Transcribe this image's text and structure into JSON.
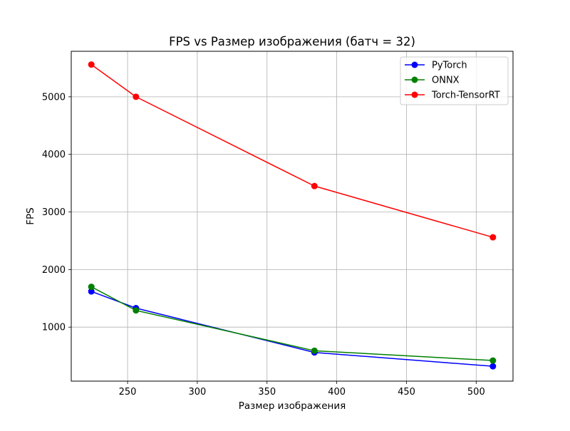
{
  "chart_data": {
    "type": "line",
    "title": "FPS vs Размер изображения (батч = 32)",
    "xlabel": "Размер изображения",
    "ylabel": "FPS",
    "xlim": [
      209.6,
      526.4
    ],
    "ylim": [
      62,
      5790
    ],
    "xticks": [
      250,
      300,
      350,
      400,
      450,
      500
    ],
    "yticks": [
      1000,
      2000,
      3000,
      4000,
      5000
    ],
    "grid": true,
    "legend_position": "top-right",
    "x": [
      224,
      256,
      384,
      512
    ],
    "series": [
      {
        "name": "PyTorch",
        "color": "#0000ff",
        "values": [
          1620,
          1330,
          560,
          320
        ]
      },
      {
        "name": "ONNX",
        "color": "#008000",
        "values": [
          1700,
          1290,
          590,
          420
        ]
      },
      {
        "name": "Torch-TensorRT",
        "color": "#ff0000",
        "values": [
          5560,
          5000,
          3450,
          2560
        ]
      }
    ]
  }
}
